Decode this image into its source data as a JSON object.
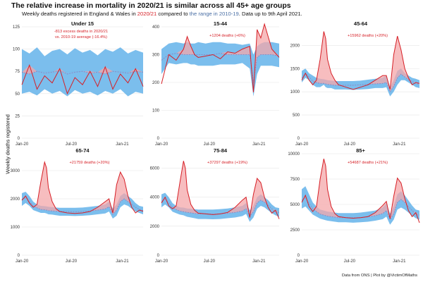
{
  "header": {
    "title": "The relative increase in mortality in 2020/21 is similar across all 45+ age groups",
    "subtitle_pre": "Weekly deaths registered in England & Wales in ",
    "subtitle_red": "2020/21",
    "subtitle_mid": " compared to ",
    "subtitle_blue": "the range in 2010-19",
    "subtitle_post": ". Data up to 9th April 2021."
  },
  "ylabel": "Weekly deaths registered",
  "caption": "Data from ONS | Plot by @VictimOfMaths",
  "colors": {
    "line_2020": "#d61f26",
    "fill_excess": "#f4a7a9",
    "range_band": "#5aaee8",
    "mean_line": "#8a8fc8"
  },
  "chart_data": [
    {
      "type": "line",
      "panel_title": "Under 15",
      "annotation": [
        "-813 excess deaths in 2020/21",
        "vs. 2010-19 average (-16.4%)"
      ],
      "ylim": [
        0,
        125
      ],
      "yticks": [
        0,
        25,
        50,
        75,
        100,
        125
      ],
      "xticks": [
        "Jan-20",
        "Jul-20",
        "Jan-21"
      ],
      "x": [
        0,
        4,
        8,
        12,
        16,
        20,
        24,
        28,
        32,
        36,
        40,
        44,
        48,
        52,
        56,
        60,
        64
      ],
      "range_low": [
        50,
        52,
        48,
        55,
        50,
        53,
        47,
        54,
        50,
        52,
        48,
        53,
        50,
        55,
        47,
        52,
        50
      ],
      "range_high": [
        100,
        95,
        102,
        92,
        98,
        100,
        94,
        101,
        96,
        99,
        93,
        100,
        97,
        102,
        95,
        99,
        96
      ],
      "mean": [
        74,
        72,
        75,
        73,
        74,
        76,
        72,
        74,
        75,
        73,
        74,
        72,
        75,
        74,
        73,
        75,
        74
      ],
      "deaths_2020": [
        60,
        82,
        55,
        70,
        62,
        78,
        50,
        68,
        60,
        75,
        58,
        80,
        55,
        72,
        62,
        78,
        58
      ]
    },
    {
      "type": "line",
      "panel_title": "15-44",
      "annotation": [
        "+1204 deaths (+6%)"
      ],
      "ylim": [
        0,
        400
      ],
      "yticks": [
        0,
        100,
        200,
        300,
        400
      ],
      "xticks": [
        "Jan-20",
        "Jul-20",
        "Jan-21"
      ],
      "x": [
        0,
        4,
        8,
        12,
        14,
        16,
        18,
        20,
        24,
        28,
        32,
        36,
        40,
        44,
        48,
        50,
        52,
        54,
        56,
        60,
        64
      ],
      "range_low": [
        230,
        270,
        265,
        270,
        270,
        265,
        265,
        260,
        260,
        260,
        265,
        265,
        265,
        270,
        250,
        150,
        230,
        260,
        260,
        260,
        255
      ],
      "range_high": [
        320,
        340,
        345,
        340,
        345,
        340,
        340,
        345,
        340,
        345,
        345,
        340,
        340,
        335,
        340,
        300,
        330,
        340,
        345,
        345,
        340
      ],
      "mean": [
        280,
        300,
        305,
        300,
        300,
        300,
        300,
        300,
        300,
        300,
        305,
        300,
        300,
        300,
        300,
        200,
        290,
        300,
        300,
        300,
        295
      ],
      "deaths_2020": [
        195,
        300,
        280,
        320,
        365,
        330,
        300,
        290,
        295,
        300,
        285,
        310,
        305,
        320,
        330,
        165,
        390,
        360,
        410,
        320,
        290
      ]
    },
    {
      "type": "line",
      "panel_title": "45-64",
      "annotation": [
        "+15962 deaths (+20%)"
      ],
      "ylim": [
        0,
        2400
      ],
      "yticks": [
        0,
        500,
        1000,
        1500,
        2000
      ],
      "xticks": [
        "Jan-20",
        "Jul-20",
        "Jan-21"
      ],
      "x": [
        0,
        2,
        4,
        6,
        8,
        10,
        12,
        13,
        14,
        16,
        18,
        20,
        24,
        28,
        32,
        36,
        40,
        44,
        46,
        48,
        50,
        52,
        54,
        56,
        58,
        60,
        62,
        64
      ],
      "range_low": [
        1200,
        1300,
        1250,
        1150,
        1100,
        1100,
        1150,
        1100,
        1080,
        1080,
        1050,
        1050,
        1050,
        1040,
        1050,
        1060,
        1080,
        1080,
        1100,
        900,
        1000,
        1150,
        1250,
        1250,
        1200,
        1150,
        1100,
        1080
      ],
      "range_high": [
        1450,
        1500,
        1400,
        1350,
        1300,
        1280,
        1270,
        1260,
        1250,
        1240,
        1230,
        1230,
        1230,
        1230,
        1240,
        1260,
        1280,
        1300,
        1350,
        1100,
        1250,
        1450,
        1500,
        1400,
        1350,
        1300,
        1280,
        1250
      ],
      "mean": [
        1300,
        1400,
        1320,
        1230,
        1200,
        1180,
        1180,
        1170,
        1160,
        1150,
        1140,
        1140,
        1140,
        1140,
        1150,
        1160,
        1170,
        1180,
        1200,
        1000,
        1120,
        1300,
        1380,
        1320,
        1260,
        1220,
        1180,
        1160
      ],
      "deaths_2020": [
        1250,
        1400,
        1250,
        1150,
        1250,
        1700,
        2300,
        2150,
        1700,
        1400,
        1250,
        1150,
        1100,
        1050,
        1100,
        1150,
        1250,
        1350,
        1350,
        1050,
        1800,
        2200,
        1900,
        1500,
        1300,
        1150,
        1200,
        1180
      ]
    },
    {
      "type": "line",
      "panel_title": "65-74",
      "annotation": [
        "+21759 deaths (+20%)"
      ],
      "ylim": [
        0,
        3600
      ],
      "yticks": [
        0,
        1000,
        2000,
        3000
      ],
      "xticks": [
        "Jan-20",
        "Jul-20",
        "Jan-21"
      ],
      "x": [
        0,
        2,
        4,
        6,
        8,
        10,
        12,
        13,
        14,
        16,
        18,
        20,
        24,
        28,
        32,
        36,
        40,
        44,
        46,
        48,
        50,
        52,
        54,
        56,
        58,
        60,
        62,
        64
      ],
      "range_low": [
        1750,
        1850,
        1750,
        1600,
        1550,
        1500,
        1500,
        1480,
        1450,
        1440,
        1420,
        1400,
        1400,
        1390,
        1400,
        1420,
        1450,
        1480,
        1550,
        1300,
        1400,
        1700,
        1800,
        1750,
        1650,
        1550,
        1500,
        1450
      ],
      "range_high": [
        2200,
        2250,
        2100,
        1900,
        1800,
        1750,
        1740,
        1730,
        1720,
        1700,
        1690,
        1680,
        1680,
        1680,
        1690,
        1720,
        1750,
        1800,
        1900,
        1650,
        1800,
        2100,
        2200,
        2100,
        2000,
        1850,
        1750,
        1720
      ],
      "mean": [
        1950,
        2050,
        1900,
        1750,
        1680,
        1620,
        1610,
        1600,
        1580,
        1570,
        1560,
        1550,
        1550,
        1540,
        1550,
        1570,
        1600,
        1640,
        1720,
        1450,
        1600,
        1900,
        2000,
        1900,
        1800,
        1700,
        1620,
        1580
      ],
      "deaths_2020": [
        1950,
        2100,
        1850,
        1700,
        1800,
        2600,
        3300,
        3100,
        2400,
        1900,
        1650,
        1550,
        1500,
        1480,
        1500,
        1550,
        1700,
        1900,
        2000,
        1500,
        2500,
        2950,
        2700,
        2100,
        1700,
        1500,
        1600,
        1560
      ]
    },
    {
      "type": "line",
      "panel_title": "75-84",
      "annotation": [
        "+37297 deaths (+19%)"
      ],
      "ylim": [
        0,
        7000
      ],
      "yticks": [
        0,
        2000,
        4000,
        6000
      ],
      "xticks": [
        "Jan-20",
        "Jul-20",
        "Jan-21"
      ],
      "x": [
        0,
        2,
        4,
        6,
        8,
        10,
        12,
        13,
        14,
        16,
        18,
        20,
        24,
        28,
        32,
        36,
        40,
        44,
        46,
        48,
        50,
        52,
        54,
        56,
        58,
        60,
        62,
        64
      ],
      "range_low": [
        3300,
        3500,
        3300,
        3000,
        2900,
        2800,
        2750,
        2700,
        2650,
        2600,
        2550,
        2500,
        2500,
        2480,
        2500,
        2550,
        2600,
        2700,
        2850,
        2300,
        2600,
        3200,
        3400,
        3300,
        3100,
        2900,
        2750,
        2650
      ],
      "range_high": [
        4200,
        4300,
        4000,
        3600,
        3400,
        3300,
        3280,
        3250,
        3220,
        3200,
        3180,
        3150,
        3150,
        3150,
        3180,
        3220,
        3300,
        3400,
        3600,
        3100,
        3400,
        4000,
        4200,
        4000,
        3800,
        3500,
        3300,
        3250
      ],
      "mean": [
        3700,
        3900,
        3600,
        3300,
        3150,
        3050,
        3000,
        2980,
        2950,
        2920,
        2880,
        2850,
        2850,
        2830,
        2850,
        2900,
        2950,
        3050,
        3200,
        2700,
        3000,
        3600,
        3800,
        3650,
        3450,
        3200,
        3000,
        2950
      ],
      "deaths_2020": [
        3600,
        4000,
        3400,
        3200,
        3400,
        5000,
        6500,
        6000,
        4500,
        3500,
        3100,
        2900,
        2850,
        2800,
        2850,
        2950,
        3300,
        3800,
        4000,
        2600,
        4200,
        5300,
        5000,
        4000,
        3300,
        2900,
        3100,
        2500
      ]
    },
    {
      "type": "line",
      "panel_title": "85+",
      "annotation": [
        "+54687 deaths (+21%)"
      ],
      "ylim": [
        0,
        10000
      ],
      "yticks": [
        0,
        2500,
        5000,
        7500,
        10000
      ],
      "xticks": [
        "Jan-20",
        "Jul-20",
        "Jan-21"
      ],
      "x": [
        0,
        2,
        4,
        6,
        8,
        10,
        12,
        13,
        14,
        16,
        18,
        20,
        24,
        28,
        32,
        36,
        40,
        44,
        46,
        48,
        50,
        52,
        54,
        56,
        58,
        60,
        62,
        64
      ],
      "range_low": [
        4600,
        4800,
        4400,
        4000,
        3800,
        3600,
        3500,
        3450,
        3400,
        3350,
        3300,
        3250,
        3250,
        3200,
        3250,
        3300,
        3400,
        3550,
        3800,
        3000,
        3500,
        4500,
        4700,
        4500,
        4200,
        3900,
        3650,
        3500
      ],
      "range_high": [
        6500,
        6800,
        6000,
        5200,
        4800,
        4500,
        4400,
        4350,
        4300,
        4250,
        4200,
        4150,
        4150,
        4150,
        4200,
        4300,
        4400,
        4700,
        5100,
        4100,
        4800,
        6000,
        6300,
        5900,
        5400,
        4900,
        4500,
        4400
      ],
      "mean": [
        5400,
        5700,
        5100,
        4600,
        4300,
        4050,
        3950,
        3900,
        3850,
        3800,
        3750,
        3700,
        3700,
        3680,
        3700,
        3780,
        3900,
        4100,
        4400,
        3500,
        4100,
        5200,
        5500,
        5200,
        4800,
        4400,
        4050,
        3950
      ],
      "deaths_2020": [
        5200,
        5900,
        4800,
        4300,
        4800,
        7500,
        9500,
        8800,
        6500,
        4800,
        4100,
        3800,
        3700,
        3650,
        3700,
        3800,
        4200,
        4900,
        5300,
        3600,
        5800,
        7600,
        7100,
        5600,
        4400,
        3800,
        4200,
        3200
      ]
    }
  ]
}
